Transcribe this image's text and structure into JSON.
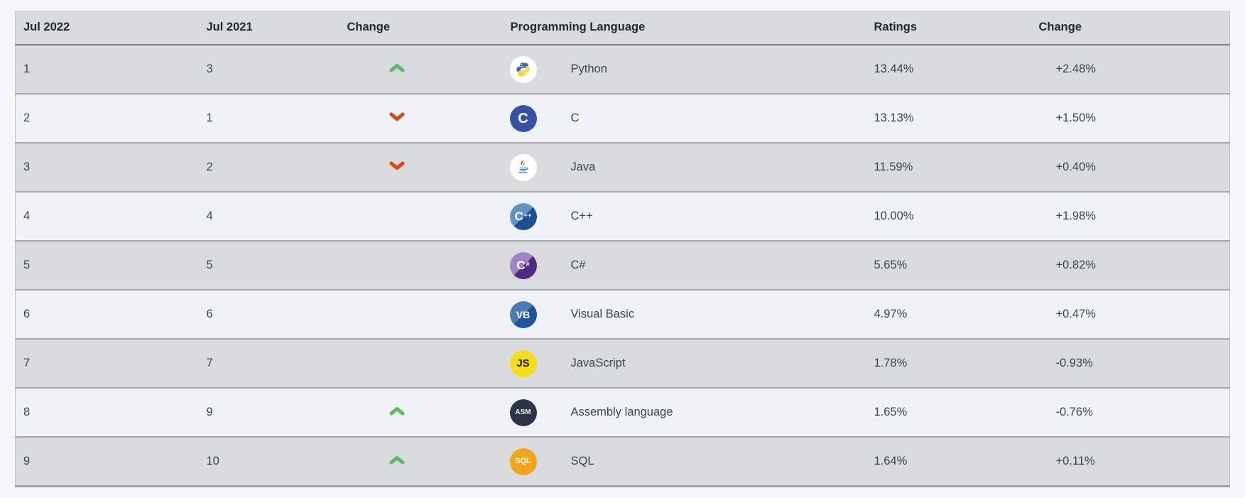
{
  "colors": {
    "page_background": "#f3f7fa",
    "header_background": "#d9dcdf",
    "row_gray": "#d9dcdf",
    "row_light": "#eff3f7",
    "row_border": "#a6aaae",
    "header_border": "#7e8286",
    "header_text": "#212a33",
    "cell_text": "#3a444e",
    "arrow_up": "#65b868",
    "arrow_down": "#d9471d"
  },
  "table": {
    "headers": [
      {
        "id": "jul2022",
        "label": "Jul 2022"
      },
      {
        "id": "jul2021",
        "label": "Jul 2021"
      },
      {
        "id": "position_change",
        "label": "Change"
      },
      {
        "id": "language",
        "label": "Programming Language"
      },
      {
        "id": "ratings",
        "label": "Ratings"
      },
      {
        "id": "ratings_change",
        "label": "Change"
      }
    ],
    "rows": [
      {
        "jul2022": "1",
        "jul2021": "3",
        "position_change": "up",
        "language": "Python",
        "icon": {
          "name": "python-logo",
          "kind": "python",
          "bg": "#ffffff",
          "snake_top": "#366f9f",
          "snake_bottom": "#ffd343"
        },
        "ratings": "13.44%",
        "ratings_change": "+2.48%"
      },
      {
        "jul2022": "2",
        "jul2021": "1",
        "position_change": "down",
        "language": "C",
        "icon": {
          "name": "c-logo",
          "kind": "text",
          "text": "C",
          "sup": "",
          "bg": "#3a50a5",
          "bg2": "#3a50a5",
          "fg": "#ffffff",
          "text_size": 20,
          "sup_size": 9
        },
        "ratings": "13.13%",
        "ratings_change": "+1.50%"
      },
      {
        "jul2022": "3",
        "jul2021": "2",
        "position_change": "down",
        "language": "Java",
        "icon": {
          "name": "java-logo",
          "kind": "java",
          "bg": "#ffffff",
          "steam": "#dd3124",
          "cup": "#4e7a9e"
        },
        "ratings": "11.59%",
        "ratings_change": "+0.40%"
      },
      {
        "jul2022": "4",
        "jul2021": "4",
        "position_change": "none",
        "language": "C++",
        "icon": {
          "name": "cpp-logo",
          "kind": "text",
          "text": "C",
          "sup": "++",
          "bg": "#5f93c6",
          "bg2": "#1c4f8f",
          "fg": "#ffffff",
          "text_size": 17,
          "sup_size": 9
        },
        "ratings": "10.00%",
        "ratings_change": "+1.98%"
      },
      {
        "jul2022": "5",
        "jul2021": "5",
        "position_change": "none",
        "language": "C#",
        "icon": {
          "name": "csharp-logo",
          "kind": "text",
          "text": "C",
          "sup": "#",
          "bg": "#a184c6",
          "bg2": "#532b7e",
          "fg": "#ffffff",
          "text_size": 17,
          "sup_size": 9
        },
        "ratings": "5.65%",
        "ratings_change": "+0.82%"
      },
      {
        "jul2022": "6",
        "jul2021": "6",
        "position_change": "none",
        "language": "Visual Basic",
        "icon": {
          "name": "vb-logo",
          "kind": "text",
          "text": "VB",
          "sup": "",
          "bg": "#4a7cb3",
          "bg2": "#1f549a",
          "fg": "#ffffff",
          "text_size": 14,
          "sup_size": 9
        },
        "ratings": "4.97%",
        "ratings_change": "+0.47%"
      },
      {
        "jul2022": "7",
        "jul2021": "7",
        "position_change": "none",
        "language": "JavaScript",
        "icon": {
          "name": "js-logo",
          "kind": "text",
          "text": "JS",
          "sup": "",
          "bg": "#f5de19",
          "bg2": "#f5de19",
          "fg": "#1c1c1c",
          "text_size": 15,
          "sup_size": 9
        },
        "ratings": "1.78%",
        "ratings_change": "-0.93%"
      },
      {
        "jul2022": "8",
        "jul2021": "9",
        "position_change": "up",
        "language": "Assembly language",
        "icon": {
          "name": "asm-logo",
          "kind": "text",
          "text": "ASM",
          "sup": "",
          "bg": "#2d3346",
          "bg2": "#2d3346",
          "fg": "#f2f2f2",
          "text_size": 10,
          "sup_size": 9
        },
        "ratings": "1.65%",
        "ratings_change": "-0.76%"
      },
      {
        "jul2022": "9",
        "jul2021": "10",
        "position_change": "up",
        "language": "SQL",
        "icon": {
          "name": "sql-logo",
          "kind": "text",
          "text": "SQL",
          "sup": "",
          "bg": "#f2a41d",
          "bg2": "#f2a41d",
          "fg": "#ffffff",
          "text_size": 11,
          "sup_size": 9
        },
        "ratings": "1.64%",
        "ratings_change": "+0.11%"
      }
    ]
  }
}
